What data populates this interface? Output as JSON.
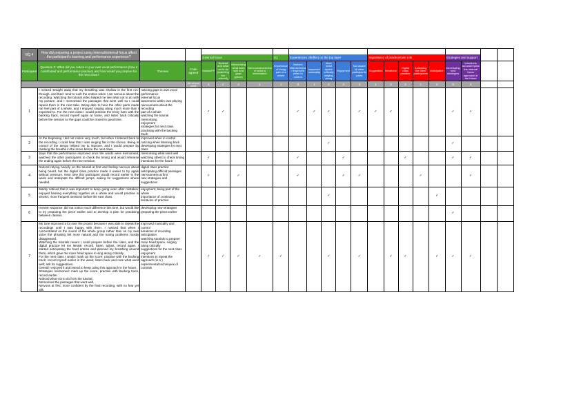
{
  "table": {
    "rq_label": "RQ 4",
    "rq_question": "How did preparing a project using internal/external focus affect the participant's learning and performance experience?",
    "columns": {
      "participant": "Participant",
      "question": "Question 2: What did you notice in your own vocal performance (how it contributed and performance practice) and how would you prepare for the next class?",
      "themes": "Themes",
      "code_agreed": "Code agreed",
      "count_label": "Nb of part code"
    },
    "check_glyph": "✓",
    "colors": {
      "green": "#4ea72e",
      "blue": "#3b7dd8",
      "red": "#ff0000",
      "purple": "#7030a0",
      "gray_header": "#808080",
      "gray_count": "#a6a6a6"
    },
    "groups": [
      {
        "label": "External focus",
        "color": "#4ea72e",
        "span": 4
      },
      {
        "label": "E2",
        "color": "#4ea72e",
        "span": 1
      },
      {
        "label": "Experiences of/effect on the top layer",
        "color": "#3b7dd8",
        "span": 5
      },
      {
        "label": "Importance of practice/own role",
        "color": "#ff0000",
        "span": 5
      },
      {
        "label": "Strategies and support",
        "color": "#7030a0",
        "span": 2
      }
    ],
    "subheaders": [
      {
        "label": "Masks/PP",
        "color": "#4ea72e"
      },
      {
        "label": "Noticed and what not to do (watching the tutorial)",
        "color": "#4ea72e"
      },
      {
        "label": "Memorising what went well and gaps (piece)",
        "color": "#4ea72e"
      },
      {
        "label": "Nervousness/stress of what to learn/watch",
        "color": "#4ea72e"
      },
      {
        "label": "Importance of being part of a whole",
        "color": "#3b7dd8"
      },
      {
        "label": "Noticed effectiveness / improved when in control",
        "color": "#3b7dd8"
      },
      {
        "label": "Improved musicality",
        "color": "#3b7dd8"
      },
      {
        "label": "More head space critically singing along",
        "color": "#3b7dd8"
      },
      {
        "label": "Enjoyment",
        "color": "#3b7dd8"
      },
      {
        "label": "Not aware of other participants' parts",
        "color": "#3b7dd8"
      },
      {
        "label": "Suggestion",
        "color": "#ff0000"
      },
      {
        "label": "Iterations",
        "color": "#ff0000"
      },
      {
        "label": "Digital class practice",
        "color": "#ff0000"
      },
      {
        "label": "Analysing the other participants",
        "color": "#ff0000"
      },
      {
        "label": "Anticipation",
        "color": "#ff0000"
      },
      {
        "label": "Developing new strategies",
        "color": "#7030a0"
      },
      {
        "label": "Intentions around/repeat the internal focus approach in the future",
        "color": "#7030a0"
      }
    ],
    "counts": [
      4,
      2,
      2,
      1,
      1,
      3,
      1,
      4,
      2,
      3,
      1,
      2,
      2,
      1,
      2,
      5,
      4
    ],
    "rows": [
      {
        "participant": "1",
        "response": "I noticed straight away that my breathing was shallow in the first run-through, and that I tend to rush the entries when I am nervous about the recording. Watching the tutorial video helped me see what not to do with my posture, and I memorised the passages that went well so I could repeat them in the next take. Being able to hear the other parts made me feel part of a whole, and I enjoyed singing along much more than I expected to. For the next class I would practise the tricky bars with the backing track, record myself again at home, and listen back critically before the session so the gaps could be closed in good time.",
        "themes": "noticing gaps in own vocal performance\nexternal focus\nawareness within own playing\nnervousness about the recording\npart of a whole\nwatching the tutorial\nmemorising\nenjoyment\nstrategies for next class\npractising with the backing track",
        "checks": [
          1,
          2,
          6,
          7,
          8,
          10,
          11,
          12,
          16,
          17
        ]
      },
      {
        "participant": "2",
        "response": "At the beginning I did not notice very much, but when I listened back to the recording I could hear that I was singing flat in the chorus. Being in control of the tempo helped me to improve, and I would prepare by marking the breaths in the score before the next class.",
        "themes": "improved when in control\nnoticing when listening back\ndeveloping strategies for next class",
        "checks": [
          8,
          16
        ]
      },
      {
        "participant": "3",
        "response": "Says that the performance improved once the words were memorised; watched the other participants to check the timing and would rehearse the ending again before the next session.",
        "themes": "memorising what went well\nwatching others to check timing\nintentions for the future",
        "checks": [
          1,
          6,
          9,
          13,
          16,
          17
        ]
      },
      {
        "participant": "4",
        "response": "Noticed relying heavily on the tutorial at first and feeling nervous about being heard, but the digital class practice made it easier to try again without pressure. Next time this participant would record earlier in the week and anticipate the difficult jumps, asking for suggestions where needed.",
        "themes": "digital class practice\nanticipating difficult passages\nnervousness at first\nnew strategies and suggestions",
        "checks": [
          1,
          3,
          6,
          9,
          10,
          14,
          17
        ]
      },
      {
        "participant": "5",
        "response": "Mainly noticed that it was important to keep going even after mistakes; enjoyed hearing everything together as a whole and would practise in shorter, more frequent sessions before the next class.",
        "themes": "enjoyment, being part of the whole\nimportance of continuing\niterations of practice",
        "checks": [
          8,
          15
        ]
      },
      {
        "participant": "6",
        "response": "Honest response: did not notice much difference this time, but would like to try preparing the piece earlier and to develop a plan for practising between classes.",
        "themes": "developing new strategies\npreparing the piece earlier",
        "checks": [
          16
        ]
      },
      {
        "participant": "7",
        "response": "My tone improved a lot over the project because I was able to repeat the recordings until I was happy with them. I noticed that when I concentrated on the sound of the whole group rather than on my own voice the phrasing felt more natural and the tuning problems mostly disappeared.\nWatching the tutorials meant I could prepare before the class, and the digital practice let me iterate: record, listen, adjust, record again. I started anticipating the hard entries and planned my breathing around them, which gave me more head space to sing along critically.\nFor the next class I would: mark up the score; practise with the backing track; record myself earlier in the week; listen back and note what went well; ask for suggestions.\nOverall I enjoyed it and intend to keep using this approach in the future.\nStrategies mentioned: mark up the score, practise with backing track, record earlier.\nNoticed what not to do from the tutorial.\nMemorised the passages that went well.\nNervous at first, more confident by the final recording, with no fear yet silk.",
        "themes": "improved musicality and control\niterations of recording\nanticipation\nwatching tutorials to prepare\nmore head space, singing along critically\nsuggestions for the next class\nenjoyment\nintentions to repeat the approach (in a )\nexperimental techniques of contrals",
        "checks": [
          1,
          2,
          3,
          4,
          5,
          8,
          10,
          12,
          13,
          15,
          16,
          17
        ]
      }
    ]
  }
}
